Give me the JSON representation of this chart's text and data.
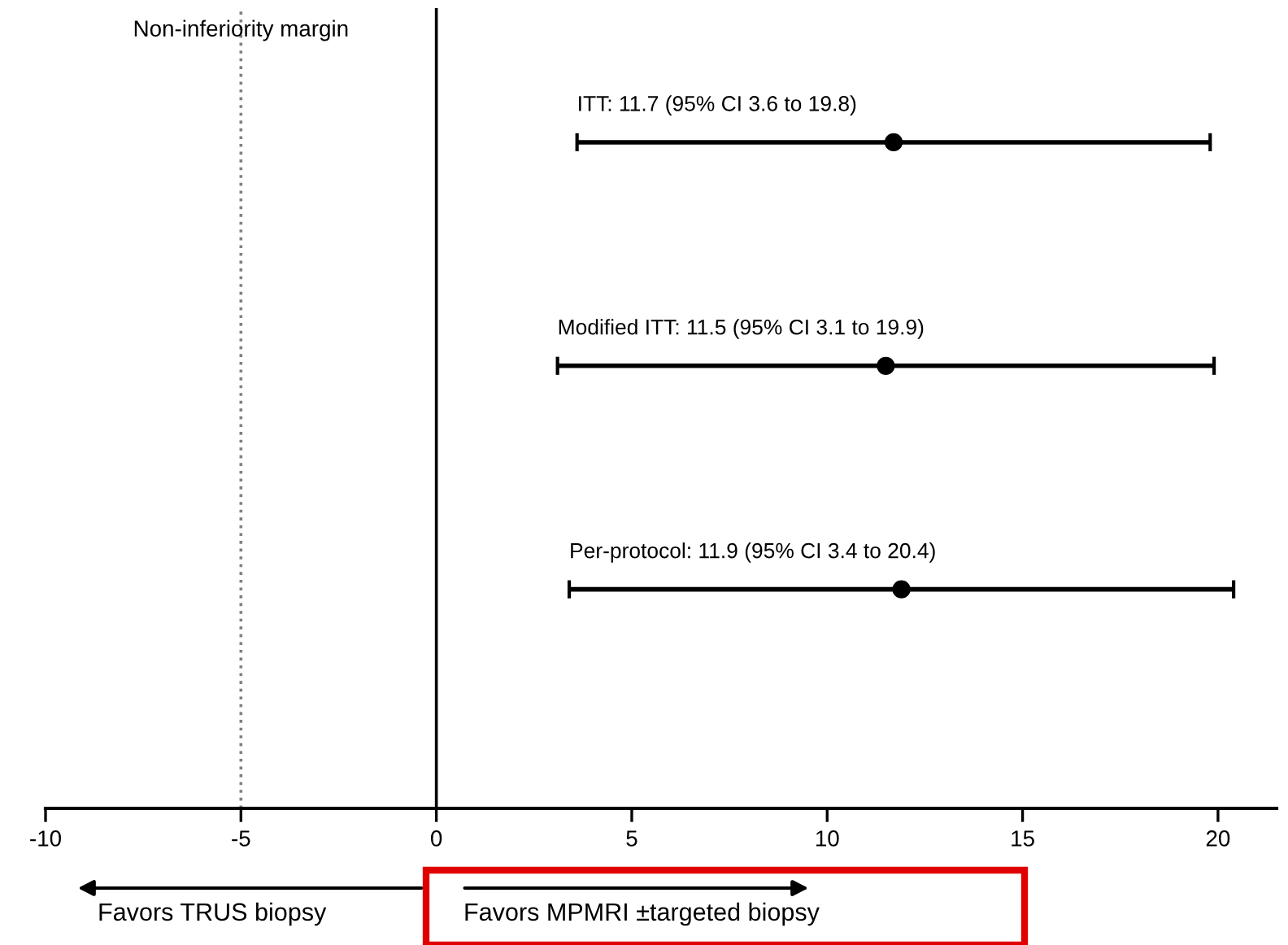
{
  "chart_data": {
    "type": "scatter",
    "orientation": "horizontal",
    "categories": [
      null,
      null,
      null
    ],
    "values": [
      11.7,
      11.5,
      11.9
    ],
    "errors": [
      [
        3.6,
        19.8
      ],
      [
        3.1,
        19.9
      ],
      [
        3.4,
        20.4
      ]
    ],
    "value_labels": [
      "ITT: 11.7 (95% CI 3.6 to 19.8)",
      "Modified ITT: 11.5 (95% CI 3.1 to 19.9)",
      "Per-protocol: 11.9 (95% CI 3.4 to 20.4)"
    ],
    "color": "#000000",
    "marker": "circle",
    "xlim": [
      -10,
      21.5
    ],
    "xticks": [
      -10,
      -5,
      0,
      5,
      10,
      15,
      20
    ],
    "ref_lines": [
      {
        "axis": "x",
        "value": 0,
        "color": "#000000",
        "line_style": "solid"
      },
      {
        "axis": "x",
        "value": -5,
        "label": "Non-inferiority margin",
        "color": "#808080",
        "line_style": "dotted"
      }
    ],
    "annotations": [
      "Favors TRUS biopsy",
      "Favors MPMRI ±targeted biopsy"
    ],
    "grid": false,
    "legend": false
  }
}
